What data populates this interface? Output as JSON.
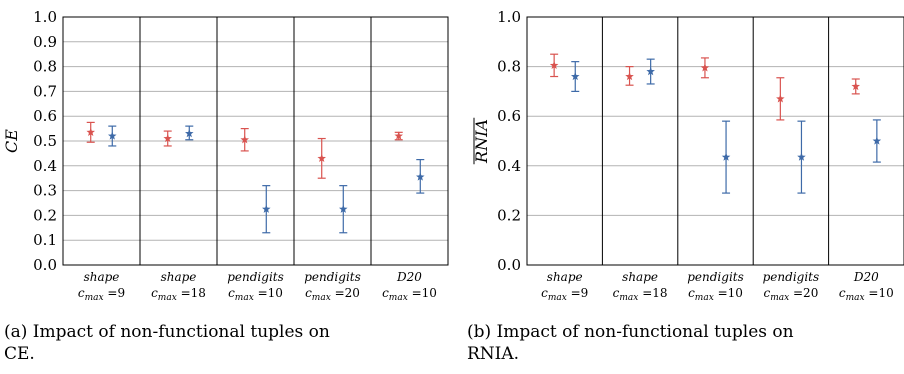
{
  "colors": {
    "series_a": "#d9534f",
    "series_b": "#3e6aa8",
    "grid": "#b3b3b3",
    "axis": "#000000"
  },
  "chart_data": [
    {
      "type": "scatter",
      "subtype": "errorbar",
      "ylabel": "CE",
      "ylim": [
        0.0,
        1.0
      ],
      "yticks": [
        "0.0",
        "0.1",
        "0.2",
        "0.3",
        "0.4",
        "0.5",
        "0.6",
        "0.7",
        "0.8",
        "0.9",
        "1.0"
      ],
      "grid": true,
      "categories": [
        {
          "name": "shape",
          "param": "max",
          "value": "=9"
        },
        {
          "name": "shape",
          "param": "max",
          "value": "=18"
        },
        {
          "name": "pendigits",
          "param": "max",
          "value": "=10"
        },
        {
          "name": "pendigits",
          "param": "max",
          "value": "=20"
        },
        {
          "name": "D20",
          "param": "max",
          "value": "=10"
        }
      ],
      "series": [
        {
          "values": [
            0.535,
            0.51,
            0.505,
            0.43,
            0.52
          ],
          "err_low": [
            0.495,
            0.48,
            0.46,
            0.35,
            0.505
          ],
          "err_high": [
            0.575,
            0.54,
            0.55,
            0.51,
            0.535
          ]
        },
        {
          "values": [
            0.52,
            0.53,
            0.225,
            0.225,
            0.355
          ],
          "err_low": [
            0.48,
            0.505,
            0.13,
            0.13,
            0.29
          ],
          "err_high": [
            0.56,
            0.56,
            0.32,
            0.32,
            0.425
          ]
        }
      ],
      "caption": "(a) Impact of non-functional tuples on CE."
    },
    {
      "type": "scatter",
      "subtype": "errorbar",
      "ylabel": "RNIA",
      "ylim": [
        0.0,
        1.0
      ],
      "yticks": [
        "0.0",
        "0.2",
        "0.4",
        "0.6",
        "0.8",
        "1.0"
      ],
      "grid": true,
      "categories": [
        {
          "name": "shape",
          "param": "max",
          "value": "=9"
        },
        {
          "name": "shape",
          "param": "max",
          "value": "=18"
        },
        {
          "name": "pendigits",
          "param": "max",
          "value": "=10"
        },
        {
          "name": "pendigits",
          "param": "max",
          "value": "=20"
        },
        {
          "name": "D20",
          "param": "max",
          "value": "=10"
        }
      ],
      "series": [
        {
          "values": [
            0.805,
            0.76,
            0.795,
            0.67,
            0.72
          ],
          "err_low": [
            0.76,
            0.725,
            0.755,
            0.585,
            0.69
          ],
          "err_high": [
            0.85,
            0.8,
            0.835,
            0.755,
            0.75
          ]
        },
        {
          "values": [
            0.76,
            0.78,
            0.435,
            0.435,
            0.5
          ],
          "err_low": [
            0.7,
            0.73,
            0.29,
            0.29,
            0.415
          ],
          "err_high": [
            0.82,
            0.83,
            0.58,
            0.58,
            0.585
          ]
        }
      ],
      "caption": "(b) Impact of non-functional tuples on RNIA."
    }
  ]
}
